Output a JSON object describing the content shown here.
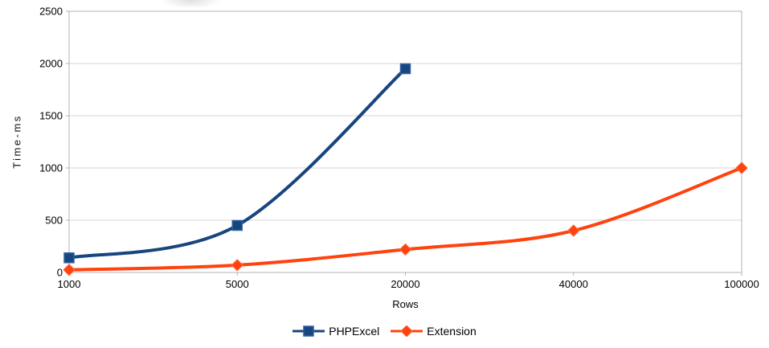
{
  "colors": {
    "gridline": "#d6d6d6",
    "plot_border": "#b3b3b3",
    "text": "#000000",
    "background": "#ffffff"
  },
  "chart_data": {
    "type": "line",
    "title": "",
    "xlabel": "Rows",
    "ylabel": "Time-ms",
    "categories": [
      "1000",
      "5000",
      "20000",
      "40000",
      "100000"
    ],
    "series": [
      {
        "name": "PHPExcel",
        "color": "#17457e",
        "marker": "square",
        "marker_border": "#2e5f9e",
        "values": [
          140,
          450,
          1950,
          null,
          null
        ]
      },
      {
        "name": "Extension",
        "color": "#ff420e",
        "marker": "diamond",
        "marker_border": "#ff6a3c",
        "values": [
          25,
          70,
          220,
          400,
          1000
        ]
      }
    ],
    "ylim": [
      0,
      2500
    ],
    "ytick_step": 500,
    "grid": "horizontal-only",
    "line_smoothing": true,
    "legend_position": "bottom-center"
  }
}
